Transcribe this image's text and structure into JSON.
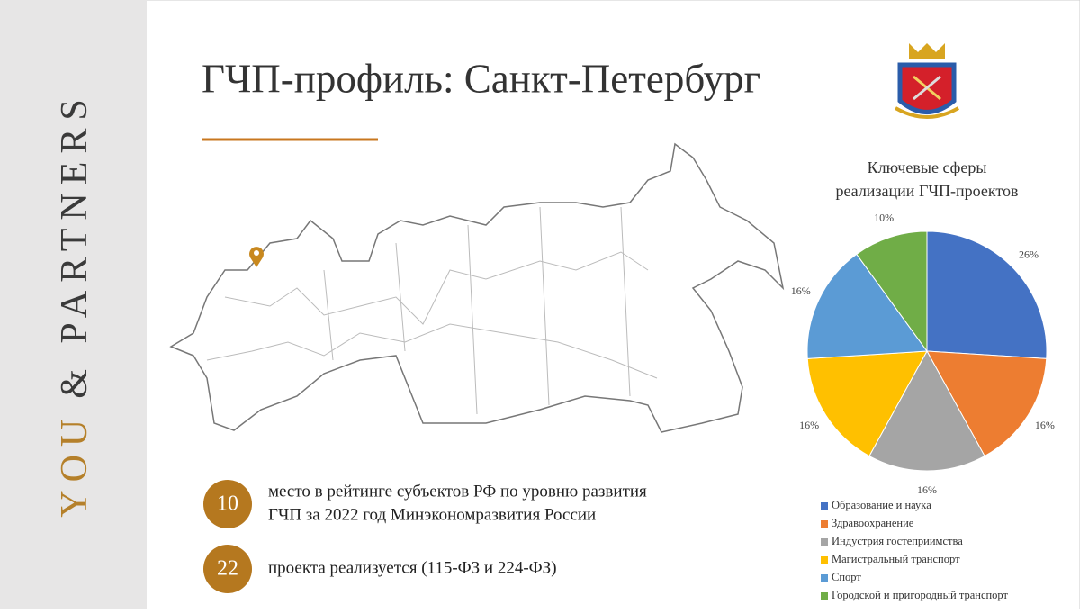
{
  "sidebar": {
    "accent": "YOU",
    "rest": "& PARTNERS"
  },
  "title": "ГЧП-профиль: Санкт-Петербург",
  "stats": [
    {
      "number": "10",
      "lines": [
        "место в рейтинге субъектов РФ по уровню развития",
        "ГЧП за 2022 год Минэкономразвития России"
      ]
    },
    {
      "number": "22",
      "lines": [
        "проекта реализуется (115-ФЗ и 224-ФЗ)"
      ]
    }
  ],
  "chart_data": {
    "type": "pie",
    "title": [
      "Ключевые сферы",
      "реализации ГЧП-проектов"
    ],
    "categories": [
      "Образование и наука",
      "Здравоохранение",
      "Индустрия гостеприимства",
      "Магистральный транспорт",
      "Спорт",
      "Городской и пригородный транспорт"
    ],
    "values": [
      26,
      16,
      16,
      16,
      16,
      10
    ],
    "value_labels": [
      "26%",
      "16%",
      "16%",
      "16%",
      "16%",
      "10%"
    ],
    "colors": [
      "#4472c4",
      "#ed7d31",
      "#a5a5a5",
      "#ffc000",
      "#5b9bd5",
      "#70ad47"
    ],
    "legend": "bottom"
  }
}
